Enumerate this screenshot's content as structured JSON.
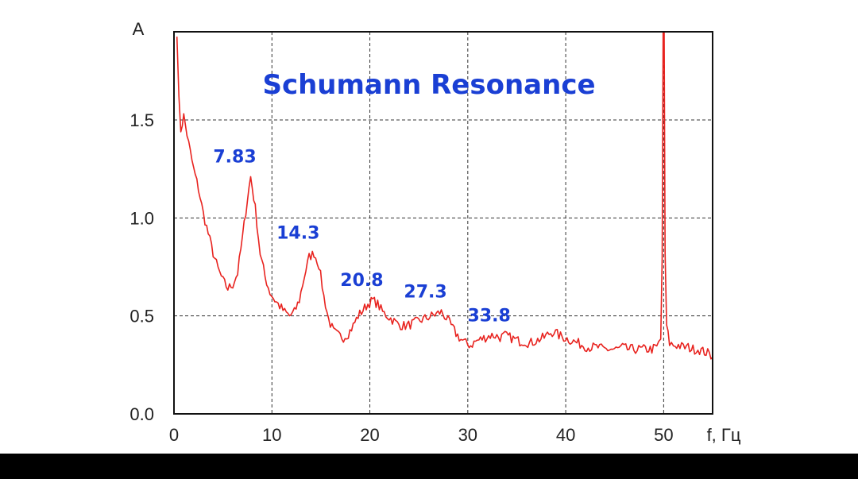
{
  "chart_data": {
    "type": "line",
    "title": "Schumann Resonance",
    "xlabel": "f, Гц",
    "ylabel": "A",
    "xlim": [
      0,
      55
    ],
    "ylim": [
      0,
      1.95
    ],
    "x_ticks": [
      0,
      10,
      20,
      30,
      40,
      50
    ],
    "y_ticks": [
      0.0,
      0.5,
      1.0,
      1.5
    ],
    "y_tick_labels": [
      "0.0",
      "0.5",
      "1.0",
      "1.5"
    ],
    "grid": true,
    "peak_labels": [
      {
        "text": "7.83",
        "x": 7.83,
        "y": 1.21
      },
      {
        "text": "14.3",
        "x": 14.3,
        "y": 0.82
      },
      {
        "text": "20.8",
        "x": 20.8,
        "y": 0.58
      },
      {
        "text": "27.3",
        "x": 27.3,
        "y": 0.52
      },
      {
        "text": "33.8",
        "x": 33.8,
        "y": 0.4
      }
    ],
    "series": [
      {
        "x": [
          0.3,
          0.5,
          0.7,
          1.0,
          1.5,
          2.0,
          2.5,
          3.0,
          3.5,
          4.0,
          4.5,
          5.0,
          5.5,
          6.0,
          6.5,
          7.0,
          7.5,
          7.83,
          8.3,
          8.8,
          9.3,
          9.8,
          10.3,
          10.8,
          11.3,
          11.8,
          12.3,
          12.8,
          13.3,
          13.8,
          14.3,
          14.8,
          15.3,
          15.8,
          16.3,
          16.8,
          17.3,
          17.8,
          18.3,
          18.8,
          19.3,
          19.8,
          20.3,
          20.8,
          21.3,
          21.8,
          22.3,
          22.8,
          23.3,
          23.8,
          24.3,
          24.8,
          25.3,
          25.8,
          26.3,
          26.8,
          27.3,
          27.8,
          28.3,
          28.8,
          29.3,
          29.8,
          30.3,
          30.8,
          31.3,
          31.8,
          32.3,
          32.8,
          33.3,
          33.8,
          34.3,
          34.8,
          35.3,
          35.8,
          36.3,
          36.8,
          37.3,
          37.8,
          38.3,
          38.8,
          39.3,
          39.8,
          40.3,
          40.8,
          41.3,
          41.8,
          42.3,
          42.8,
          43.3,
          43.8,
          44.3,
          44.8,
          45.3,
          45.8,
          46.3,
          46.8,
          47.3,
          47.8,
          48.3,
          48.8,
          49.3,
          49.7,
          49.85,
          49.95,
          50.05,
          50.15,
          50.3,
          50.6,
          51.0,
          51.5,
          52.0,
          52.5,
          53.0,
          53.5,
          54.0,
          54.5,
          55.0
        ],
        "values": [
          1.95,
          1.6,
          1.45,
          1.52,
          1.38,
          1.25,
          1.15,
          1.02,
          0.92,
          0.82,
          0.74,
          0.68,
          0.64,
          0.66,
          0.72,
          0.9,
          1.1,
          1.21,
          1.05,
          0.82,
          0.7,
          0.62,
          0.58,
          0.55,
          0.52,
          0.5,
          0.52,
          0.58,
          0.7,
          0.8,
          0.82,
          0.76,
          0.6,
          0.48,
          0.42,
          0.4,
          0.39,
          0.41,
          0.45,
          0.5,
          0.53,
          0.56,
          0.58,
          0.56,
          0.52,
          0.5,
          0.48,
          0.46,
          0.45,
          0.45,
          0.46,
          0.47,
          0.48,
          0.49,
          0.5,
          0.51,
          0.52,
          0.49,
          0.45,
          0.41,
          0.38,
          0.36,
          0.35,
          0.37,
          0.38,
          0.39,
          0.4,
          0.4,
          0.39,
          0.4,
          0.39,
          0.38,
          0.37,
          0.37,
          0.36,
          0.37,
          0.38,
          0.39,
          0.41,
          0.42,
          0.4,
          0.39,
          0.38,
          0.37,
          0.36,
          0.35,
          0.34,
          0.34,
          0.34,
          0.33,
          0.33,
          0.33,
          0.33,
          0.34,
          0.33,
          0.33,
          0.33,
          0.33,
          0.33,
          0.33,
          0.34,
          0.38,
          0.8,
          1.95,
          1.95,
          0.8,
          0.45,
          0.36,
          0.35,
          0.35,
          0.34,
          0.34,
          0.33,
          0.33,
          0.32,
          0.31,
          0.29
        ]
      }
    ]
  },
  "colors": {
    "line": "#e8231f",
    "title": "#1a3fd4",
    "peak_label": "#1a3fd4",
    "grid": "#333333",
    "axis": "#111111",
    "background": "#ffffff",
    "bottom_bar": "#000000"
  }
}
